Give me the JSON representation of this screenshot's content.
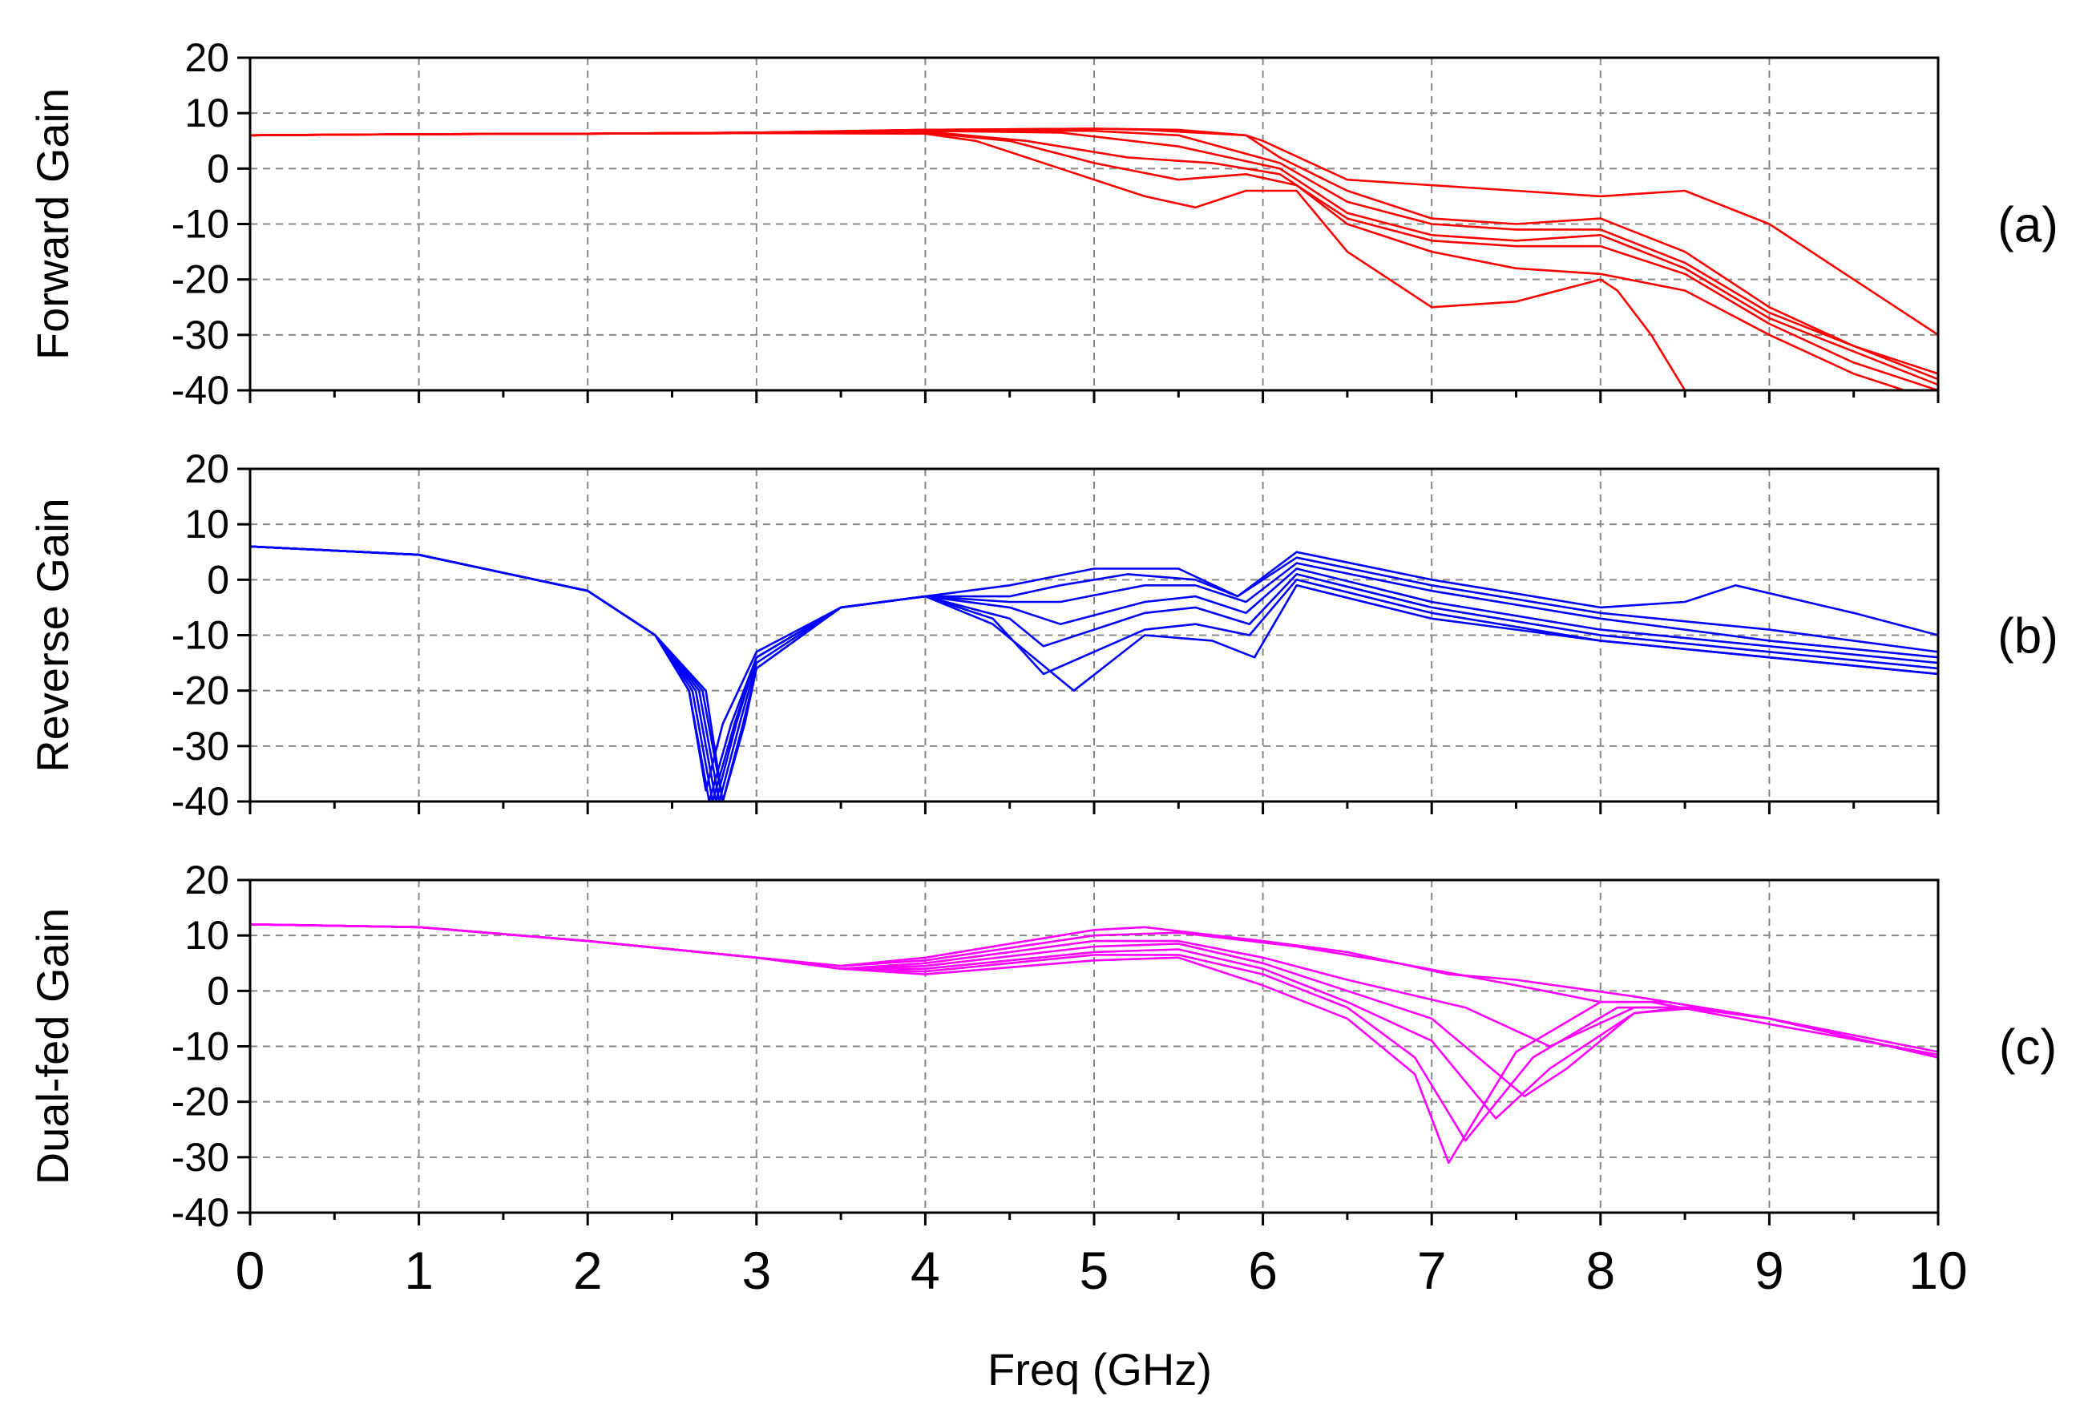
{
  "figure": {
    "xlabel": "Freq (GHz)",
    "xlim": [
      0,
      10
    ],
    "xticks": [
      "0",
      "1",
      "2",
      "3",
      "4",
      "5",
      "6",
      "7",
      "8",
      "9",
      "10"
    ]
  },
  "chart_data": [
    {
      "type": "line",
      "panel_tag": "(a)",
      "ylabel": "Forward Gain",
      "ylim": [
        -40,
        20
      ],
      "yticks": [
        "20",
        "10",
        "0",
        "-10",
        "-20",
        "-30",
        "-40"
      ],
      "grid": true,
      "color": "#ff0000",
      "series": [
        {
          "x": [
            0,
            1,
            2,
            3,
            4,
            5,
            5.3,
            5.6,
            5.9,
            6.0,
            6.5,
            7,
            7.5,
            8,
            8.5,
            9,
            9.5,
            10
          ],
          "y": [
            6,
            6.2,
            6.3,
            6.5,
            7,
            7.2,
            7,
            6.5,
            6,
            5,
            -2,
            -3,
            -4,
            -5,
            -4,
            -10,
            -20,
            -30
          ]
        },
        {
          "x": [
            0,
            1,
            2,
            3,
            4,
            5,
            5.5,
            5.9,
            6.1,
            6.5,
            7,
            7.5,
            8,
            8.5,
            9,
            9.5,
            10
          ],
          "y": [
            6,
            6.2,
            6.3,
            6.5,
            7,
            7.2,
            7,
            6,
            2,
            -4,
            -9,
            -10,
            -9,
            -15,
            -25,
            -32,
            -37
          ]
        },
        {
          "x": [
            0,
            1,
            2,
            3,
            4,
            5,
            5.5,
            6.1,
            6.5,
            7,
            7.5,
            8,
            8.5,
            9,
            9.5,
            10
          ],
          "y": [
            6,
            6.2,
            6.3,
            6.5,
            6.9,
            6.8,
            6,
            1,
            -6,
            -10,
            -11,
            -11,
            -17,
            -26,
            -32,
            -38
          ]
        },
        {
          "x": [
            0,
            1,
            2,
            3,
            4,
            4.8,
            5.5,
            6.1,
            6.5,
            7,
            7.5,
            8,
            8.5,
            9,
            9.5,
            10
          ],
          "y": [
            6,
            6.2,
            6.3,
            6.5,
            6.8,
            6.5,
            4,
            0,
            -8,
            -12,
            -13,
            -12,
            -18,
            -27,
            -33,
            -39
          ]
        },
        {
          "x": [
            0,
            1,
            2,
            3,
            4,
            4.6,
            5.2,
            5.7,
            6.1,
            6.5,
            7,
            7.5,
            8,
            8.5,
            9,
            9.5,
            10
          ],
          "y": [
            6,
            6.2,
            6.3,
            6.4,
            6.7,
            5,
            2,
            1,
            -1,
            -9,
            -13,
            -14,
            -14,
            -19,
            -28,
            -35,
            -40
          ]
        },
        {
          "x": [
            0,
            1,
            2,
            3,
            4,
            4.5,
            5,
            5.5,
            5.9,
            6.2,
            6.5,
            7,
            7.5,
            8,
            8.5,
            9,
            9.5,
            10
          ],
          "y": [
            6,
            6.2,
            6.3,
            6.4,
            6.5,
            5,
            1,
            -2,
            -1,
            -3,
            -10,
            -15,
            -18,
            -19,
            -22,
            -30,
            -37,
            -42
          ]
        },
        {
          "x": [
            0,
            1,
            2,
            3,
            4,
            4.3,
            4.8,
            5.3,
            5.6,
            5.9,
            6.2,
            6.5,
            7,
            7.5,
            8,
            8.1,
            8.3,
            8.5
          ],
          "y": [
            6,
            6.2,
            6.3,
            6.4,
            6.3,
            5,
            0,
            -5,
            -7,
            -4,
            -4,
            -15,
            -25,
            -24,
            -20,
            -22,
            -30,
            -40
          ]
        }
      ]
    },
    {
      "type": "line",
      "panel_tag": "(b)",
      "ylabel": "Reverse Gain",
      "ylim": [
        -40,
        20
      ],
      "yticks": [
        "20",
        "10",
        "0",
        "-10",
        "-20",
        "-30",
        "-40"
      ],
      "grid": true,
      "color": "#0000ff",
      "series": [
        {
          "x": [
            0,
            1,
            2,
            2.4,
            2.6,
            2.7,
            2.8,
            3.0,
            3.5,
            4,
            4.5,
            5,
            5.5,
            5.85,
            6.2,
            7,
            8,
            8.5,
            8.8,
            9.5,
            10
          ],
          "y": [
            6,
            4.5,
            -2,
            -10,
            -20,
            -38,
            -26,
            -13,
            -5,
            -3,
            -1,
            2,
            2,
            -3,
            5,
            0,
            -5,
            -4,
            -1,
            -6,
            -10
          ]
        },
        {
          "x": [
            0,
            1,
            2,
            2.4,
            2.6,
            2.72,
            2.85,
            3.0,
            3.5,
            4,
            4.5,
            4.8,
            5.2,
            5.6,
            5.85,
            6.2,
            7,
            8,
            9,
            10
          ],
          "y": [
            6,
            4.5,
            -2,
            -10,
            -20,
            -40,
            -26,
            -14,
            -5,
            -3,
            -3,
            -1,
            1,
            0,
            -3,
            4,
            -1,
            -6,
            -9,
            -13
          ]
        },
        {
          "x": [
            0,
            1,
            2,
            2.4,
            2.62,
            2.74,
            2.87,
            3.0,
            3.5,
            4,
            4.5,
            4.8,
            5.3,
            5.6,
            5.9,
            6.2,
            7,
            8,
            9,
            10
          ],
          "y": [
            6,
            4.5,
            -2,
            -10,
            -20,
            -40,
            -26,
            -14,
            -5,
            -3,
            -4,
            -4,
            -1,
            -1,
            -4,
            3,
            -2,
            -7,
            -11,
            -14
          ]
        },
        {
          "x": [
            0,
            1,
            2,
            2.4,
            2.64,
            2.76,
            2.88,
            3.0,
            3.5,
            4,
            4.5,
            4.8,
            5.3,
            5.6,
            5.9,
            6.2,
            7,
            8,
            9,
            10
          ],
          "y": [
            6,
            4.5,
            -2,
            -10,
            -20,
            -40,
            -26,
            -14,
            -5,
            -3,
            -5,
            -8,
            -4,
            -3,
            -6,
            2,
            -4,
            -9,
            -12,
            -15
          ]
        },
        {
          "x": [
            0,
            1,
            2,
            2.4,
            2.66,
            2.78,
            2.9,
            3.0,
            3.5,
            4,
            4.5,
            4.7,
            5.3,
            5.6,
            5.92,
            6.2,
            7,
            8,
            9,
            10
          ],
          "y": [
            6,
            4.5,
            -2,
            -10,
            -20,
            -40,
            -26,
            -15,
            -5,
            -3,
            -7,
            -12,
            -6,
            -5,
            -8,
            1,
            -5,
            -10,
            -13,
            -16
          ]
        },
        {
          "x": [
            0,
            1,
            2,
            2.4,
            2.68,
            2.8,
            2.92,
            3.0,
            3.5,
            4,
            4.4,
            4.7,
            5.3,
            5.6,
            5.92,
            6.2,
            7,
            8,
            9,
            10
          ],
          "y": [
            6,
            4.5,
            -2,
            -10,
            -20,
            -40,
            -26,
            -16,
            -5,
            -3,
            -7,
            -17,
            -9,
            -8,
            -10,
            0,
            -6,
            -11,
            -14,
            -17
          ]
        },
        {
          "x": [
            0,
            1,
            2,
            2.4,
            2.7,
            2.8,
            2.93,
            3.0,
            3.5,
            4,
            4.4,
            4.88,
            5.3,
            5.7,
            5.95,
            6.2,
            7,
            8,
            9,
            10
          ],
          "y": [
            6,
            4.5,
            -2,
            -10,
            -20,
            -40,
            -26,
            -16,
            -5,
            -3,
            -8,
            -20,
            -10,
            -11,
            -14,
            -1,
            -7,
            -11,
            -14,
            -17
          ]
        }
      ]
    },
    {
      "type": "line",
      "panel_tag": "(c)",
      "ylabel": "Dual-fed Gain",
      "ylim": [
        -40,
        20
      ],
      "yticks": [
        "20",
        "10",
        "0",
        "-10",
        "-20",
        "-30",
        "-40"
      ],
      "grid": true,
      "color": "#ff00ff",
      "series": [
        {
          "x": [
            0,
            1,
            2,
            3,
            3.5,
            4,
            5,
            5.3,
            6,
            6.5,
            7.1,
            7.5,
            8.2,
            9,
            10
          ],
          "y": [
            12,
            11.5,
            9,
            6,
            4.5,
            6,
            11,
            11.5,
            9,
            7,
            3,
            2,
            -1,
            -5,
            -11
          ]
        },
        {
          "x": [
            0,
            1,
            2,
            3,
            3.5,
            4,
            5,
            5.5,
            6.2,
            6.8,
            7.5,
            8,
            8.3,
            9,
            10
          ],
          "y": [
            12,
            11.5,
            9,
            6,
            4.5,
            5.5,
            10,
            10.5,
            8,
            5,
            1,
            -2,
            -2,
            -6,
            -11.5
          ]
        },
        {
          "x": [
            0,
            1,
            2,
            3,
            3.5,
            4,
            5,
            5.5,
            6,
            6.5,
            7.2,
            7.7,
            8.2,
            8.6,
            9,
            10
          ],
          "y": [
            12,
            11.5,
            9,
            6,
            4,
            5,
            9,
            9,
            6,
            2,
            -3,
            -10,
            -3,
            -3,
            -5,
            -12
          ]
        },
        {
          "x": [
            0,
            1,
            2,
            3,
            3.5,
            4,
            5,
            5.5,
            6,
            6.5,
            7,
            7.55,
            7.8,
            8.2,
            8.6,
            9,
            10
          ],
          "y": [
            12,
            11.5,
            9,
            6,
            4,
            4.5,
            8,
            8.5,
            5,
            0,
            -5,
            -19,
            -14,
            -4,
            -3,
            -5,
            -12
          ]
        },
        {
          "x": [
            0,
            1,
            2,
            3,
            3.5,
            4,
            5,
            5.5,
            6,
            6.5,
            7,
            7.38,
            7.7,
            8.2,
            8.5,
            9,
            10
          ],
          "y": [
            12,
            11.5,
            9,
            6,
            4,
            4,
            7,
            7.5,
            4,
            -2,
            -9,
            -23,
            -14,
            -4,
            -3,
            -5,
            -12
          ]
        },
        {
          "x": [
            0,
            1,
            2,
            3,
            3.5,
            4,
            5,
            5.5,
            6,
            6.5,
            6.9,
            7.2,
            7.6,
            8.1,
            8.5,
            9,
            10
          ],
          "y": [
            12,
            11.5,
            9,
            6,
            4,
            3.5,
            6.5,
            6.5,
            3,
            -3,
            -12,
            -27,
            -12,
            -3,
            -3,
            -5,
            -12
          ]
        },
        {
          "x": [
            0,
            1,
            2,
            3,
            3.5,
            4,
            5,
            5.5,
            6,
            6.5,
            6.9,
            7.1,
            7.5,
            8,
            8.4,
            9,
            10
          ],
          "y": [
            12,
            11.5,
            9,
            6,
            4,
            3,
            5.5,
            6,
            1,
            -5,
            -15,
            -31,
            -11,
            -2,
            -2,
            -5,
            -12
          ]
        }
      ]
    }
  ]
}
